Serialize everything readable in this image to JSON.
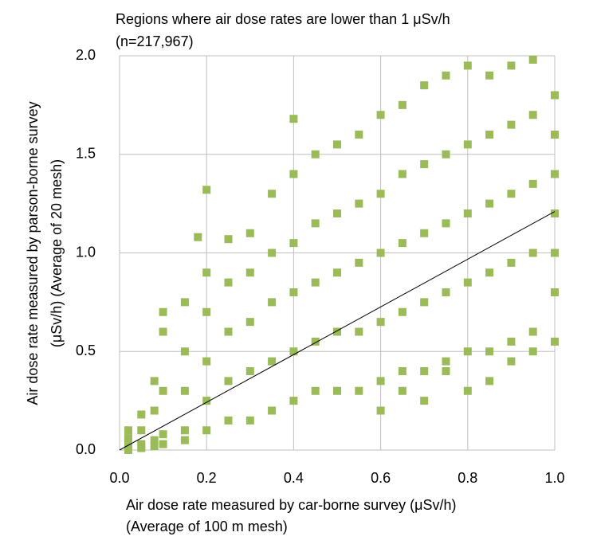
{
  "chart_data": {
    "type": "scatter",
    "title": "Regions where air dose rates are lower than 1 μSv/h",
    "subtitle": "(n=217,967)",
    "x_label": [
      "Air dose rate measured by car-borne survey (μSv/h)",
      "(Average of 100 m mesh)"
    ],
    "y_label": [
      "Air dose rate measured by parson-borne survey",
      "(μSv/h) (Average of 20 mesh)"
    ],
    "xlim": [
      0,
      1
    ],
    "ylim": [
      0,
      2
    ],
    "xticks": [
      {
        "value": 0,
        "label": "0.0"
      },
      0.2,
      0.4,
      0.6,
      0.8,
      {
        "value": 1,
        "label": "1.0"
      }
    ],
    "yticks": [
      {
        "value": 0,
        "label": "0.0"
      },
      0.5,
      {
        "value": 1,
        "label": "1.0"
      },
      1.5,
      {
        "value": 2,
        "label": "2.0"
      }
    ],
    "grid": true,
    "series": [
      {
        "color": "#9bbb59",
        "x": [
          0.02,
          0.02,
          0.02,
          0.02,
          0.05,
          0.05,
          0.05,
          0.05,
          0.08,
          0.08,
          0.08,
          0.08,
          0.1,
          0.1,
          0.1,
          0.1,
          0.1,
          0.15,
          0.15,
          0.15,
          0.15,
          0.15,
          0.18,
          0.2,
          0.2,
          0.2,
          0.2,
          0.2,
          0.2,
          0.25,
          0.25,
          0.25,
          0.25,
          0.25,
          0.3,
          0.3,
          0.3,
          0.3,
          0.3,
          0.35,
          0.35,
          0.35,
          0.35,
          0.35,
          0.4,
          0.4,
          0.4,
          0.4,
          0.4,
          0.4,
          0.45,
          0.45,
          0.45,
          0.45,
          0.45,
          0.5,
          0.5,
          0.5,
          0.5,
          0.5,
          0.55,
          0.55,
          0.55,
          0.55,
          0.55,
          0.6,
          0.6,
          0.6,
          0.6,
          0.6,
          0.6,
          0.65,
          0.65,
          0.65,
          0.65,
          0.65,
          0.65,
          0.7,
          0.7,
          0.7,
          0.7,
          0.7,
          0.7,
          0.75,
          0.75,
          0.75,
          0.75,
          0.75,
          0.75,
          0.8,
          0.8,
          0.8,
          0.8,
          0.8,
          0.8,
          0.85,
          0.85,
          0.85,
          0.85,
          0.85,
          0.85,
          0.9,
          0.9,
          0.9,
          0.9,
          0.9,
          0.9,
          0.95,
          0.95,
          0.95,
          0.95,
          0.95,
          0.95,
          1,
          1,
          1,
          1,
          1,
          1,
          1
        ],
        "values": [
          0.02,
          0.06,
          0.1,
          0,
          0.03,
          0.1,
          0.18,
          0.01,
          0.05,
          0.2,
          0.35,
          0.02,
          0.08,
          0.3,
          0.6,
          0.03,
          0.7,
          0.1,
          0.3,
          0.5,
          0.75,
          0.05,
          1.08,
          0.1,
          0.25,
          0.45,
          0.7,
          0.9,
          1.32,
          0.15,
          0.35,
          0.6,
          0.85,
          1.07,
          0.15,
          0.4,
          0.65,
          0.9,
          1.1,
          0.2,
          0.45,
          0.75,
          1,
          1.3,
          0.25,
          0.5,
          0.8,
          1.05,
          1.4,
          1.68,
          0.3,
          0.55,
          0.85,
          1.15,
          1.5,
          0.3,
          0.6,
          0.9,
          1.2,
          1.55,
          0.3,
          0.6,
          0.95,
          1.25,
          1.6,
          0.35,
          0.65,
          1,
          1.3,
          1.7,
          0.2,
          0.4,
          0.7,
          1.05,
          1.4,
          1.75,
          0.3,
          0.4,
          0.75,
          1.1,
          1.45,
          1.85,
          0.25,
          0.45,
          0.8,
          1.15,
          1.5,
          1.9,
          0.4,
          0.5,
          0.85,
          1.2,
          1.55,
          1.95,
          0.3,
          0.5,
          0.9,
          1.25,
          1.6,
          1.9,
          0.35,
          0.55,
          0.95,
          1.3,
          1.65,
          1.95,
          0.45,
          0.6,
          1,
          1.35,
          1.7,
          1.98,
          0.5,
          0.55,
          0.8,
          1,
          1.2,
          1.4,
          1.6,
          1.8
        ]
      }
    ],
    "trendline": {
      "x": [
        0,
        1
      ],
      "y": [
        0,
        1.21
      ],
      "color": "#000000"
    }
  }
}
